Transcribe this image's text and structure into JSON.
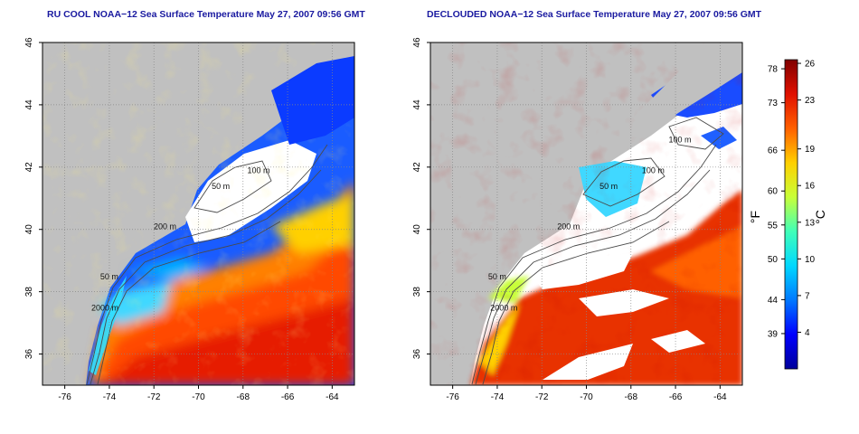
{
  "chart_data": [
    {
      "type": "heatmap",
      "title": "RU COOL NOAA−12 Sea Surface Temperature May 27, 2007 09:56 GMT",
      "xlim": [
        -77,
        -63
      ],
      "ylim": [
        35,
        46
      ],
      "x_ticks": [
        "-76",
        "-74",
        "-72",
        "-70",
        "-68",
        "-66",
        "-64"
      ],
      "x_tick_values": [
        -76,
        -74,
        -72,
        -70,
        -68,
        -66,
        -64
      ],
      "y_ticks": [
        "36",
        "38",
        "40",
        "42",
        "44",
        "46"
      ],
      "y_tick_values": [
        36,
        38,
        40,
        42,
        44,
        46
      ],
      "grid": true,
      "contour_labels": [
        {
          "text": "100 m",
          "lon": -67.3,
          "lat": 41.8
        },
        {
          "text": "50 m",
          "lon": -69.0,
          "lat": 41.3
        },
        {
          "text": "200 m",
          "lon": -71.5,
          "lat": 40.0
        },
        {
          "text": "50 m",
          "lon": -74.0,
          "lat": 38.4
        },
        {
          "text": "2000 m",
          "lon": -74.2,
          "lat": 37.4
        }
      ]
    },
    {
      "type": "heatmap",
      "title": "DECLOUDED NOAA−12 Sea Surface Temperature May 27, 2007 09:56 GMT",
      "xlim": [
        -77,
        -63
      ],
      "ylim": [
        35,
        46
      ],
      "x_ticks": [
        "-76",
        "-74",
        "-72",
        "-70",
        "-68",
        "-66",
        "-64"
      ],
      "x_tick_values": [
        -76,
        -74,
        -72,
        -70,
        -68,
        -66,
        -64
      ],
      "y_ticks": [
        "36",
        "38",
        "40",
        "42",
        "44",
        "46"
      ],
      "y_tick_values": [
        36,
        38,
        40,
        42,
        44,
        46
      ],
      "grid": true,
      "contour_labels": [
        {
          "text": "100 m",
          "lon": -65.8,
          "lat": 42.8
        },
        {
          "text": "100 m",
          "lon": -67.0,
          "lat": 41.8
        },
        {
          "text": "50 m",
          "lon": -69.0,
          "lat": 41.3
        },
        {
          "text": "200 m",
          "lon": -70.8,
          "lat": 40.0
        },
        {
          "text": "50 m",
          "lon": -74.0,
          "lat": 38.4
        },
        {
          "text": "2000 m",
          "lon": -73.7,
          "lat": 37.4
        }
      ]
    }
  ],
  "colorbar": {
    "celsius_ticks": [
      "26",
      "23",
      "19",
      "16",
      "13",
      "10",
      "7",
      "4"
    ],
    "celsius_values": [
      26,
      23,
      19,
      16,
      13,
      10,
      7,
      4
    ],
    "fahrenheit_ticks": [
      "78",
      "73",
      "66",
      "60",
      "55",
      "50",
      "44",
      "39"
    ],
    "fahrenheit_values": [
      78,
      73,
      66,
      60,
      55,
      50,
      44,
      39
    ],
    "range_c": [
      1,
      26.3
    ],
    "left_label": "°F",
    "right_label": "°C",
    "colors": [
      "#00009a",
      "#0000ff",
      "#0078ff",
      "#00d8ff",
      "#40ffb8",
      "#c8ff38",
      "#ffd000",
      "#ff6000",
      "#e01000",
      "#800000"
    ]
  },
  "colors": {
    "land": "#c0c0c0",
    "cloud": "#ffffff",
    "contour": "#555555",
    "title": "#1a1aa0"
  }
}
